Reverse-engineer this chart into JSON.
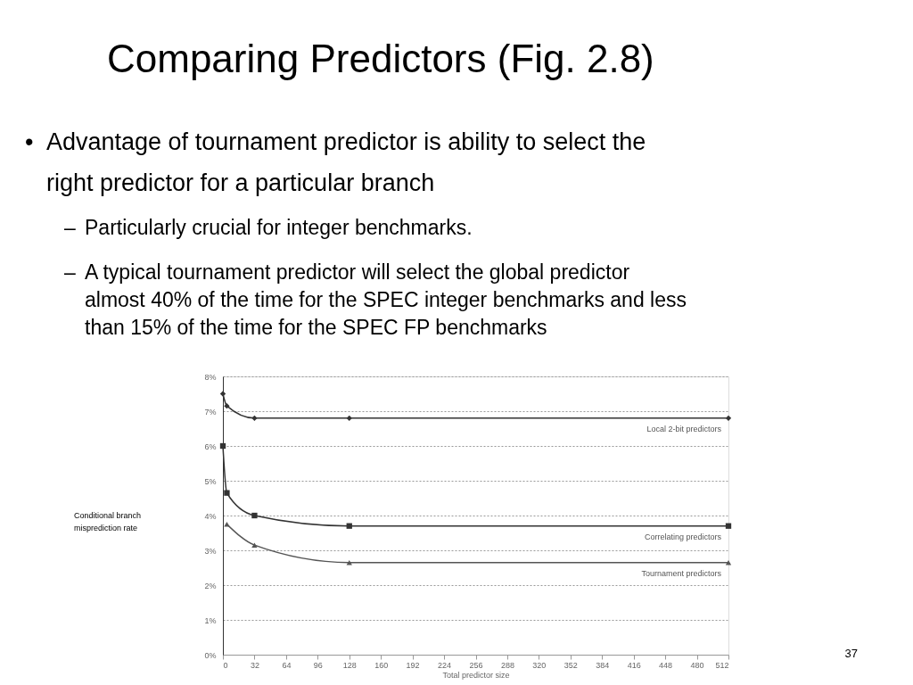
{
  "chart_data": {
    "type": "line",
    "title": "Comparing Predictors (Fig. 2.8)",
    "annotations": [
      "• Advantage of tournament predictor is ability to select the right predictor for a particular branch",
      "– Particularly crucial for integer benchmarks.",
      "– A typical tournament predictor will select the global predictor almost 40% of the time for the SPEC integer benchmarks and less than 15% of the time for the SPEC FP benchmarks",
      "37",
      "Conditional branch misprediction rate"
    ],
    "xlabel": "Total predictor size",
    "series": [
      {
        "name": "Local 2-bit predictors",
        "color": "#333333",
        "marker": "diamond",
        "x": [
          0,
          4,
          32,
          128,
          512
        ],
        "values": [
          7.5,
          7.15,
          6.8,
          6.8,
          6.8
        ]
      },
      {
        "name": "Correlating predictors",
        "color": "#333333",
        "marker": "square",
        "x": [
          0,
          4,
          32,
          128,
          512
        ],
        "values": [
          6.0,
          4.65,
          4.0,
          3.7,
          3.7
        ]
      },
      {
        "name": "Tournament predictors",
        "color": "#555555",
        "marker": "triangle",
        "x": [
          4,
          32,
          128,
          512
        ],
        "values": [
          3.75,
          3.15,
          2.65,
          2.65
        ]
      }
    ],
    "xlim": [
      0,
      512
    ],
    "xticks": [
      0,
      32,
      64,
      96,
      128,
      160,
      192,
      224,
      256,
      288,
      320,
      352,
      384,
      416,
      448,
      480,
      512
    ],
    "ylim": [
      0,
      8
    ],
    "yticks": [
      {
        "value": 0,
        "label": "0%"
      },
      {
        "value": 1,
        "label": "1%"
      },
      {
        "value": 2,
        "label": "2%"
      },
      {
        "value": 3,
        "label": "3%"
      },
      {
        "value": 4,
        "label": "4%"
      },
      {
        "value": 5,
        "label": "5%"
      },
      {
        "value": 6,
        "label": "6%"
      },
      {
        "value": 7,
        "label": "7%"
      },
      {
        "value": 8,
        "label": "8%"
      }
    ],
    "grid": "y",
    "line_style": "solid",
    "legend": false
  }
}
